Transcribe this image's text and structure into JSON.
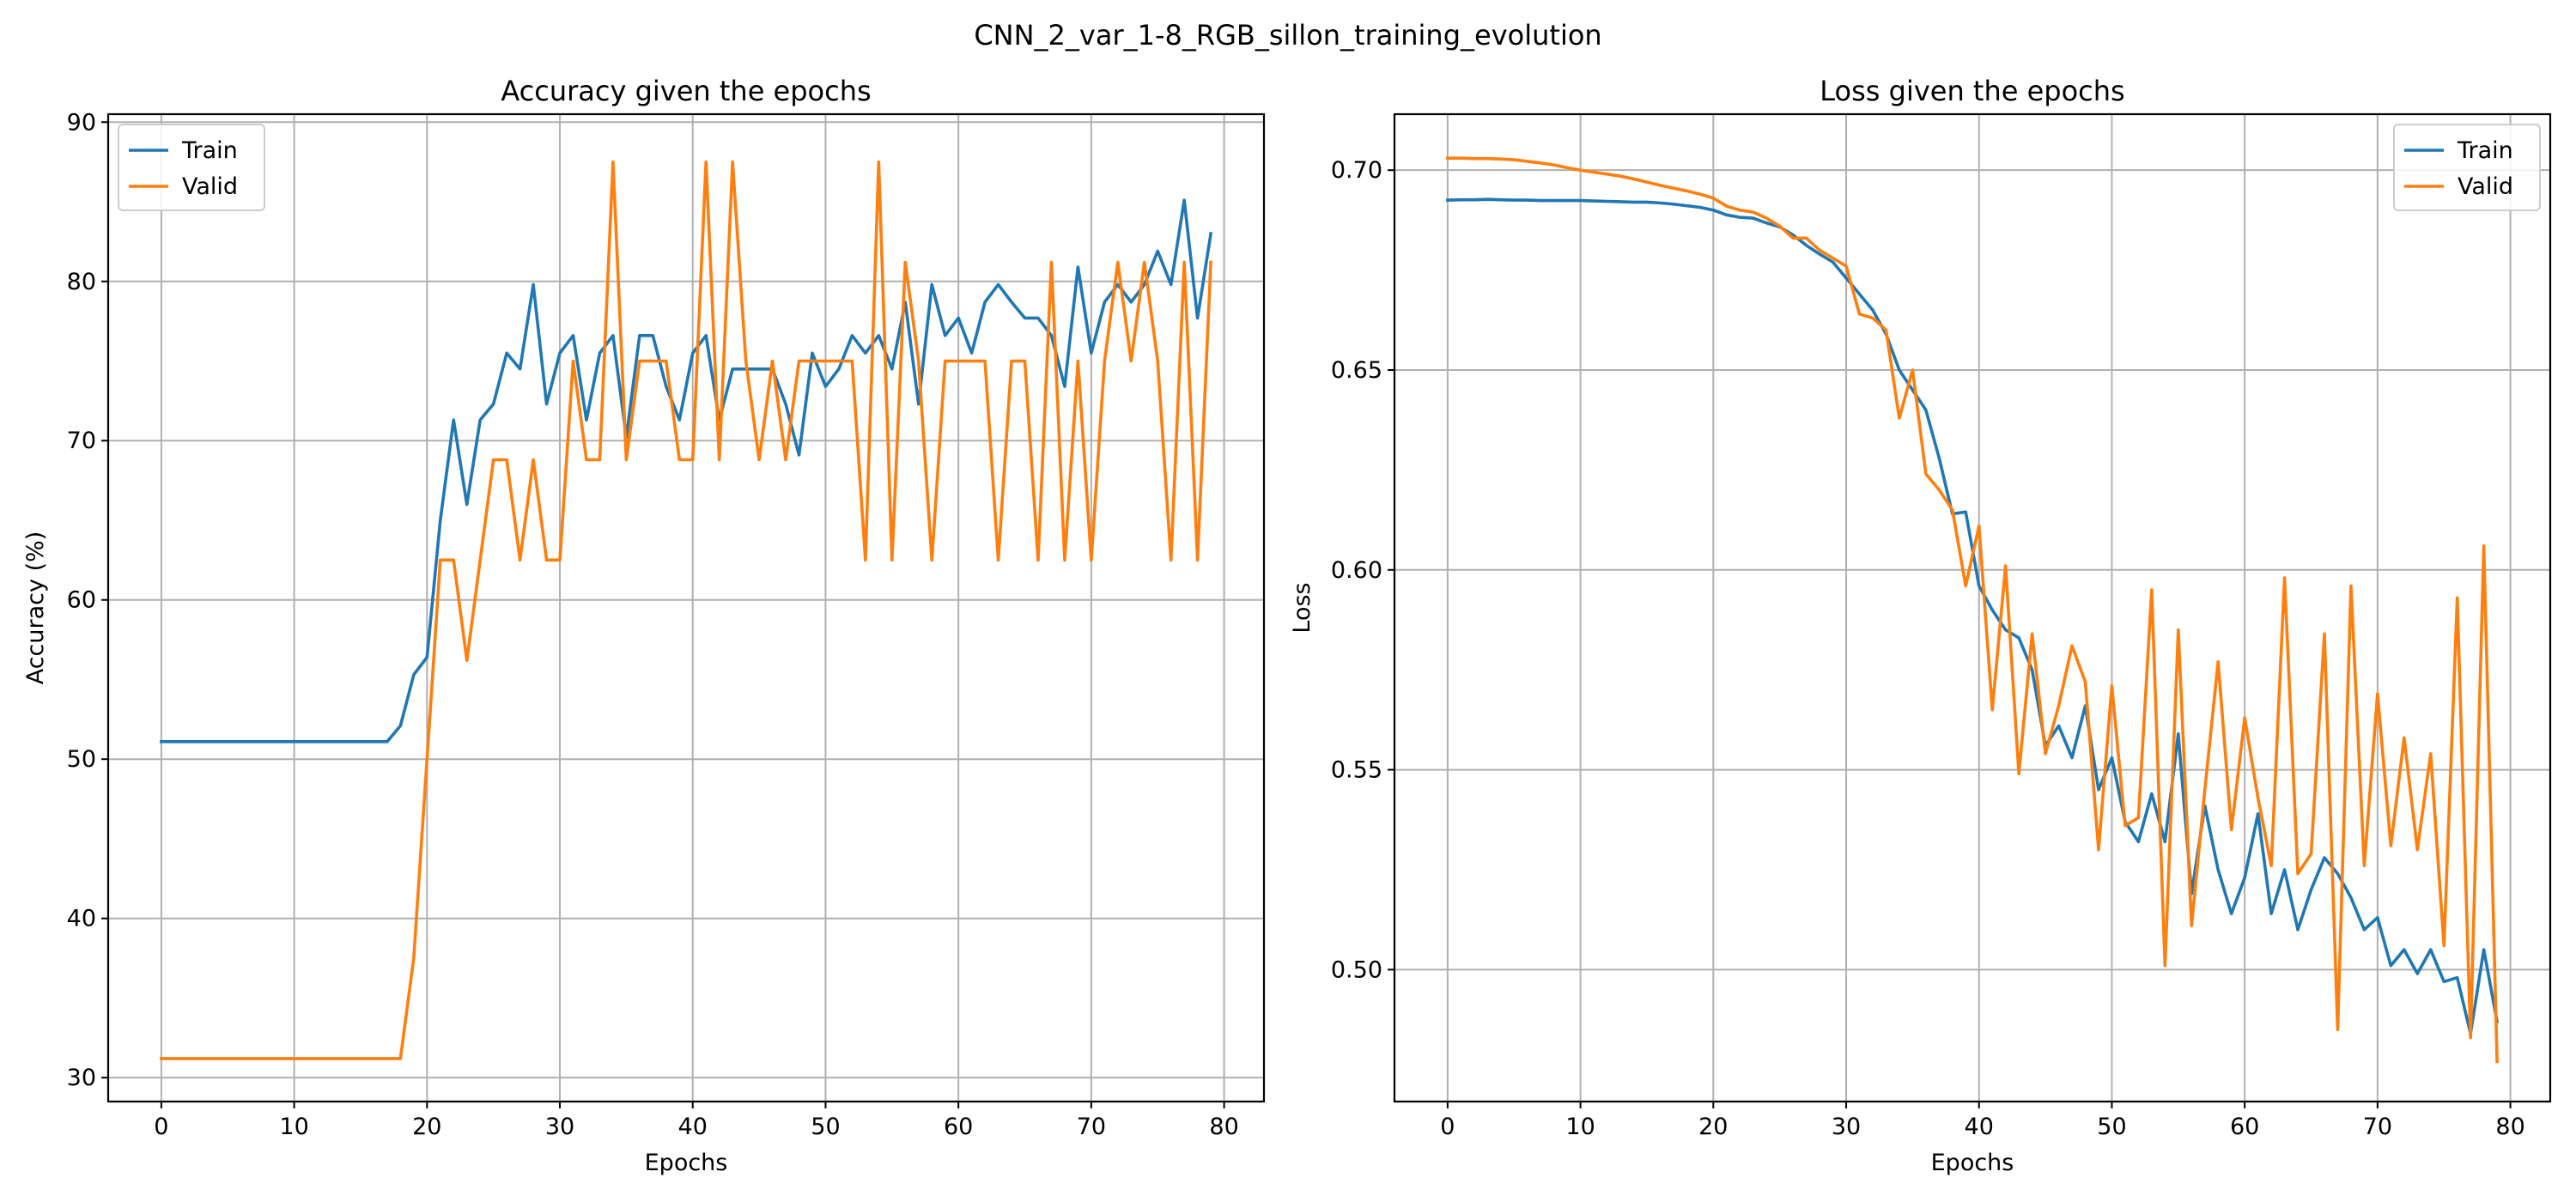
{
  "figure": {
    "title": "CNN_2_var_1-8_RGB_sillon_training_evolution"
  },
  "colors": {
    "train": "#1f77b4",
    "valid": "#ff7f0e",
    "grid": "#b0b0b0"
  },
  "chart_data": [
    {
      "type": "line",
      "title": "Accuracy given the epochs",
      "xlabel": "Epochs",
      "ylabel": "Accuracy (%)",
      "xlim": [
        -4,
        83
      ],
      "ylim": [
        28.5,
        90.5
      ],
      "xticks": [
        0,
        10,
        20,
        30,
        40,
        50,
        60,
        70,
        80
      ],
      "yticks": [
        30,
        40,
        50,
        60,
        70,
        80,
        90
      ],
      "grid": true,
      "legend_position": "upper-left",
      "series": [
        {
          "name": "Train",
          "color": "#1f77b4",
          "values": [
            51.1,
            51.1,
            51.1,
            51.1,
            51.1,
            51.1,
            51.1,
            51.1,
            51.1,
            51.1,
            51.1,
            51.1,
            51.1,
            51.1,
            51.1,
            51.1,
            51.1,
            51.1,
            52.1,
            55.3,
            56.4,
            65.0,
            71.3,
            66.0,
            71.3,
            72.3,
            75.5,
            74.5,
            79.8,
            72.3,
            75.5,
            76.6,
            71.3,
            75.5,
            76.6,
            70.2,
            76.6,
            76.6,
            73.4,
            71.3,
            75.5,
            76.6,
            71.3,
            74.5,
            74.5,
            74.5,
            74.5,
            72.3,
            69.1,
            75.5,
            73.4,
            74.5,
            76.6,
            75.5,
            76.6,
            74.5,
            78.7,
            72.3,
            79.8,
            76.6,
            77.7,
            75.5,
            78.7,
            79.8,
            78.7,
            77.7,
            77.7,
            76.6,
            73.4,
            80.9,
            75.5,
            78.7,
            79.8,
            78.7,
            79.8,
            81.9,
            79.8,
            85.1,
            77.7,
            83.0
          ]
        },
        {
          "name": "Valid",
          "color": "#ff7f0e",
          "values": [
            31.2,
            31.2,
            31.2,
            31.2,
            31.2,
            31.2,
            31.2,
            31.2,
            31.2,
            31.2,
            31.2,
            31.2,
            31.2,
            31.2,
            31.2,
            31.2,
            31.2,
            31.2,
            31.2,
            37.5,
            50.0,
            62.5,
            62.5,
            56.2,
            62.5,
            68.8,
            68.8,
            62.5,
            68.8,
            62.5,
            62.5,
            75.0,
            68.8,
            68.8,
            87.5,
            68.8,
            75.0,
            75.0,
            75.0,
            68.8,
            68.8,
            87.5,
            68.8,
            87.5,
            75.0,
            68.8,
            75.0,
            68.8,
            75.0,
            75.0,
            75.0,
            75.0,
            75.0,
            62.5,
            87.5,
            62.5,
            81.2,
            75.0,
            62.5,
            75.0,
            75.0,
            75.0,
            75.0,
            62.5,
            75.0,
            75.0,
            62.5,
            81.2,
            62.5,
            75.0,
            62.5,
            75.0,
            81.2,
            75.0,
            81.2,
            75.0,
            62.5,
            81.2,
            62.5,
            81.2
          ]
        }
      ]
    },
    {
      "type": "line",
      "title": "Loss given the epochs",
      "xlabel": "Epochs",
      "ylabel": "Loss",
      "xlim": [
        -4,
        83
      ],
      "ylim": [
        0.467,
        0.714
      ],
      "xticks": [
        0,
        10,
        20,
        30,
        40,
        50,
        60,
        70,
        80
      ],
      "yticks": [
        "0.50",
        "0.55",
        "0.60",
        "0.65",
        "0.70"
      ],
      "grid": true,
      "legend_position": "upper-right",
      "series": [
        {
          "name": "Train",
          "color": "#1f77b4",
          "values": [
            0.6925,
            0.6926,
            0.6926,
            0.6927,
            0.6926,
            0.6925,
            0.6925,
            0.6924,
            0.6924,
            0.6924,
            0.6924,
            0.6923,
            0.6922,
            0.6921,
            0.692,
            0.692,
            0.6918,
            0.6915,
            0.6911,
            0.6907,
            0.69,
            0.6888,
            0.6882,
            0.688,
            0.6868,
            0.6858,
            0.6838,
            0.6812,
            0.679,
            0.677,
            0.673,
            0.669,
            0.665,
            0.659,
            0.65,
            0.645,
            0.64,
            0.628,
            0.614,
            0.6145,
            0.596,
            0.59,
            0.585,
            0.583,
            0.575,
            0.556,
            0.561,
            0.553,
            0.566,
            0.545,
            0.553,
            0.537,
            0.532,
            0.544,
            0.532,
            0.559,
            0.519,
            0.541,
            0.525,
            0.514,
            0.523,
            0.539,
            0.514,
            0.525,
            0.51,
            0.52,
            0.528,
            0.524,
            0.518,
            0.51,
            0.513,
            0.501,
            0.505,
            0.499,
            0.505,
            0.497,
            0.498,
            0.484,
            0.505,
            0.487
          ]
        },
        {
          "name": "Valid",
          "color": "#ff7f0e",
          "values": [
            0.703,
            0.703,
            0.7029,
            0.7029,
            0.7028,
            0.7026,
            0.7022,
            0.7018,
            0.7013,
            0.7006,
            0.7,
            0.6995,
            0.699,
            0.6985,
            0.6978,
            0.697,
            0.6962,
            0.6955,
            0.6948,
            0.694,
            0.693,
            0.691,
            0.69,
            0.6895,
            0.688,
            0.686,
            0.683,
            0.683,
            0.68,
            0.678,
            0.676,
            0.664,
            0.663,
            0.66,
            0.638,
            0.65,
            0.624,
            0.62,
            0.615,
            0.596,
            0.611,
            0.565,
            0.601,
            0.549,
            0.584,
            0.554,
            0.566,
            0.581,
            0.572,
            0.53,
            0.571,
            0.536,
            0.538,
            0.595,
            0.501,
            0.585,
            0.511,
            0.545,
            0.577,
            0.535,
            0.563,
            0.543,
            0.526,
            0.598,
            0.524,
            0.529,
            0.584,
            0.485,
            0.596,
            0.526,
            0.569,
            0.531,
            0.558,
            0.53,
            0.554,
            0.506,
            0.593,
            0.483,
            0.606,
            0.477
          ]
        }
      ]
    }
  ]
}
